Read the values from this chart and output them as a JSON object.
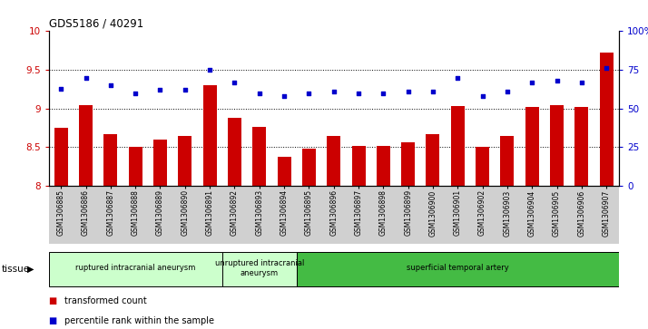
{
  "title": "GDS5186 / 40291",
  "samples": [
    "GSM1306885",
    "GSM1306886",
    "GSM1306887",
    "GSM1306888",
    "GSM1306889",
    "GSM1306890",
    "GSM1306891",
    "GSM1306892",
    "GSM1306893",
    "GSM1306894",
    "GSM1306895",
    "GSM1306896",
    "GSM1306897",
    "GSM1306898",
    "GSM1306899",
    "GSM1306900",
    "GSM1306901",
    "GSM1306902",
    "GSM1306903",
    "GSM1306904",
    "GSM1306905",
    "GSM1306906",
    "GSM1306907"
  ],
  "bar_values": [
    8.75,
    9.05,
    8.67,
    8.5,
    8.6,
    8.65,
    9.3,
    8.88,
    8.76,
    8.38,
    8.48,
    8.64,
    8.52,
    8.52,
    8.56,
    8.67,
    9.03,
    8.5,
    8.65,
    9.02,
    9.05,
    9.02,
    9.73
  ],
  "dot_values": [
    63,
    70,
    65,
    60,
    62,
    62,
    75,
    67,
    60,
    58,
    60,
    61,
    60,
    60,
    61,
    61,
    70,
    58,
    61,
    67,
    68,
    67,
    76
  ],
  "bar_color": "#cc0000",
  "dot_color": "#0000cc",
  "ylim_left": [
    8.0,
    10.0
  ],
  "ylim_right": [
    0,
    100
  ],
  "yticks_left": [
    8.0,
    8.5,
    9.0,
    9.5,
    10.0
  ],
  "ytick_labels_left": [
    "8",
    "8.5",
    "9",
    "9.5",
    "10"
  ],
  "yticks_right": [
    0,
    25,
    50,
    75,
    100
  ],
  "ytick_labels_right": [
    "0",
    "25",
    "50",
    "75",
    "100%"
  ],
  "grid_ticks": [
    8.5,
    9.0,
    9.5
  ],
  "group_ranges": [
    [
      0,
      6
    ],
    [
      7,
      9
    ],
    [
      10,
      22
    ]
  ],
  "group_labels": [
    "ruptured intracranial aneurysm",
    "unruptured intracranial\naneurysm",
    "superficial temporal artery"
  ],
  "group_colors": [
    "#ccffcc",
    "#ccffcc",
    "#44bb44"
  ],
  "tissue_label": "tissue",
  "legend_bar_label": "transformed count",
  "legend_dot_label": "percentile rank within the sample",
  "plot_bg_color": "#ffffff",
  "tickarea_bg_color": "#d0d0d0"
}
